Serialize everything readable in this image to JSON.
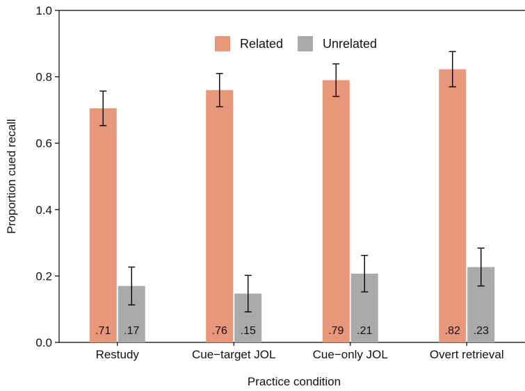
{
  "chart_data": {
    "type": "bar",
    "categories": [
      "Restudy",
      "Cue−target JOL",
      "Cue−only JOL",
      "Overt retrieval"
    ],
    "series": [
      {
        "name": "Related",
        "color": "#E9977A",
        "values": [
          0.705,
          0.76,
          0.79,
          0.823
        ],
        "error": [
          0.052,
          0.05,
          0.049,
          0.053
        ],
        "labels": [
          ".71",
          ".76",
          ".79",
          ".82"
        ]
      },
      {
        "name": "Unrelated",
        "color": "#AAAAAA",
        "values": [
          0.17,
          0.147,
          0.207,
          0.227
        ],
        "error": [
          0.057,
          0.055,
          0.055,
          0.057
        ],
        "labels": [
          ".17",
          ".15",
          ".21",
          ".23"
        ]
      }
    ],
    "xlabel": "Practice condition",
    "ylabel": "Proportion cued recall",
    "ylim": [
      0,
      1
    ],
    "yticks": [
      "0.0",
      "0.2",
      "0.4",
      "0.6",
      "0.8",
      "1.0"
    ],
    "legend": "top-center",
    "grid": false
  }
}
